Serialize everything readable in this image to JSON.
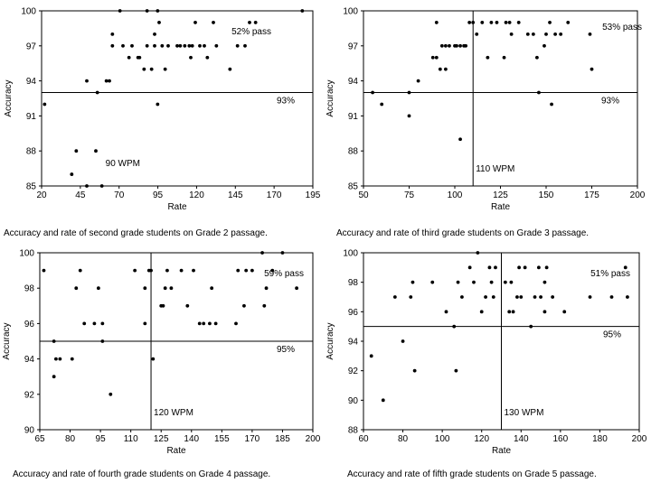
{
  "chart_data": [
    {
      "type": "scatter",
      "xlabel": "Rate",
      "ylabel": "Accuracy",
      "xlim": [
        20,
        200
      ],
      "ylim": [
        85,
        100
      ],
      "xticks": [
        "20",
        "45",
        "70",
        "95",
        "120",
        "145",
        "170",
        "195"
      ],
      "yticks": [
        "85",
        "88",
        "91",
        "94",
        "97",
        "100"
      ],
      "grid": false,
      "hline": {
        "value": 93,
        "label": "93%"
      },
      "vline": null,
      "rate_label": "90 WPM",
      "pass_label": "52% pass",
      "caption": "Accuracy and rate of second grade students on Grade 2 passage.",
      "points": [
        [
          22,
          92
        ],
        [
          40,
          86
        ],
        [
          43,
          88
        ],
        [
          50,
          85
        ],
        [
          50,
          94
        ],
        [
          56,
          88
        ],
        [
          57,
          93
        ],
        [
          60,
          85
        ],
        [
          63,
          94
        ],
        [
          65,
          94
        ],
        [
          67,
          97
        ],
        [
          67,
          98
        ],
        [
          72,
          100
        ],
        [
          74,
          97
        ],
        [
          78,
          96
        ],
        [
          80,
          97
        ],
        [
          84,
          96
        ],
        [
          85,
          96
        ],
        [
          88,
          95
        ],
        [
          90,
          97
        ],
        [
          90,
          100
        ],
        [
          93,
          95
        ],
        [
          95,
          97
        ],
        [
          95,
          98
        ],
        [
          97,
          92
        ],
        [
          97,
          100
        ],
        [
          98,
          99
        ],
        [
          100,
          97
        ],
        [
          102,
          95
        ],
        [
          104,
          97
        ],
        [
          110,
          97
        ],
        [
          112,
          97
        ],
        [
          115,
          97
        ],
        [
          118,
          97
        ],
        [
          119,
          96
        ],
        [
          120,
          97
        ],
        [
          122,
          99
        ],
        [
          125,
          97
        ],
        [
          128,
          97
        ],
        [
          130,
          96
        ],
        [
          134,
          99
        ],
        [
          136,
          97
        ],
        [
          145,
          95
        ],
        [
          150,
          97
        ],
        [
          155,
          97
        ],
        [
          158,
          99
        ],
        [
          162,
          99
        ],
        [
          193,
          100
        ]
      ]
    },
    {
      "type": "scatter",
      "xlabel": "Rate",
      "ylabel": "Accuracy",
      "xlim": [
        50,
        200
      ],
      "ylim": [
        85,
        100
      ],
      "xticks": [
        "50",
        "75",
        "100",
        "125",
        "150",
        "175",
        "200"
      ],
      "yticks": [
        "85",
        "88",
        "91",
        "94",
        "97",
        "100"
      ],
      "grid": false,
      "hline": {
        "value": 93,
        "label": "93%"
      },
      "vline": {
        "value": 110
      },
      "rate_label": "110 WPM",
      "pass_label": "53% pass",
      "caption": "Accuracy and rate of third grade students on Grade 3 passage.",
      "points": [
        [
          55,
          93
        ],
        [
          60,
          92
        ],
        [
          75,
          93
        ],
        [
          75,
          91
        ],
        [
          80,
          94
        ],
        [
          88,
          96
        ],
        [
          90,
          96
        ],
        [
          90,
          99
        ],
        [
          92,
          95
        ],
        [
          93,
          97
        ],
        [
          95,
          97
        ],
        [
          95,
          95
        ],
        [
          97,
          97
        ],
        [
          100,
          97
        ],
        [
          101,
          97
        ],
        [
          103,
          89
        ],
        [
          103,
          97
        ],
        [
          105,
          97
        ],
        [
          106,
          97
        ],
        [
          108,
          99
        ],
        [
          110,
          99
        ],
        [
          112,
          98
        ],
        [
          115,
          99
        ],
        [
          118,
          96
        ],
        [
          120,
          99
        ],
        [
          123,
          99
        ],
        [
          127,
          96
        ],
        [
          128,
          99
        ],
        [
          130,
          99
        ],
        [
          131,
          98
        ],
        [
          135,
          99
        ],
        [
          140,
          98
        ],
        [
          143,
          98
        ],
        [
          145,
          96
        ],
        [
          146,
          93
        ],
        [
          149,
          97
        ],
        [
          150,
          98
        ],
        [
          152,
          99
        ],
        [
          153,
          92
        ],
        [
          155,
          98
        ],
        [
          158,
          98
        ],
        [
          162,
          99
        ],
        [
          174,
          98
        ],
        [
          175,
          95
        ]
      ]
    },
    {
      "type": "scatter",
      "xlabel": "Rate",
      "ylabel": "Accuracy",
      "xlim": [
        65,
        200
      ],
      "ylim": [
        90,
        100
      ],
      "xticks": [
        "65",
        "80",
        "95",
        "110",
        "125",
        "140",
        "155",
        "170",
        "185",
        "200"
      ],
      "yticks": [
        "90",
        "92",
        "94",
        "96",
        "98",
        "100"
      ],
      "grid": false,
      "hline": {
        "value": 95,
        "label": "95%"
      },
      "vline": {
        "value": 120
      },
      "rate_label": "120 WPM",
      "pass_label": "59% pass",
      "caption": "Accuracy and rate of fourth grade students on Grade 4 passage.",
      "points": [
        [
          67,
          99
        ],
        [
          72,
          93
        ],
        [
          72,
          95
        ],
        [
          73,
          94
        ],
        [
          75,
          94
        ],
        [
          81,
          94
        ],
        [
          83,
          98
        ],
        [
          85,
          99
        ],
        [
          87,
          96
        ],
        [
          92,
          96
        ],
        [
          94,
          98
        ],
        [
          96,
          95
        ],
        [
          96,
          96
        ],
        [
          100,
          92
        ],
        [
          112,
          99
        ],
        [
          117,
          98
        ],
        [
          117,
          96
        ],
        [
          119,
          99
        ],
        [
          120,
          99
        ],
        [
          121,
          94
        ],
        [
          125,
          97
        ],
        [
          126,
          97
        ],
        [
          127,
          98
        ],
        [
          128,
          99
        ],
        [
          130,
          98
        ],
        [
          135,
          99
        ],
        [
          138,
          97
        ],
        [
          141,
          99
        ],
        [
          144,
          96
        ],
        [
          146,
          96
        ],
        [
          149,
          96
        ],
        [
          150,
          98
        ],
        [
          152,
          96
        ],
        [
          162,
          96
        ],
        [
          163,
          99
        ],
        [
          166,
          97
        ],
        [
          167,
          99
        ],
        [
          170,
          99
        ],
        [
          175,
          100
        ],
        [
          176,
          97
        ],
        [
          177,
          98
        ],
        [
          180,
          99
        ],
        [
          185,
          100
        ],
        [
          192,
          98
        ]
      ]
    },
    {
      "type": "scatter",
      "xlabel": "Rate",
      "ylabel": "Accuracy",
      "xlim": [
        60,
        200
      ],
      "ylim": [
        88,
        100
      ],
      "xticks": [
        "60",
        "80",
        "100",
        "120",
        "140",
        "160",
        "180",
        "200"
      ],
      "yticks": [
        "88",
        "90",
        "92",
        "94",
        "96",
        "98",
        "100"
      ],
      "grid": false,
      "hline": {
        "value": 95,
        "label": "95%"
      },
      "vline": {
        "value": 130
      },
      "rate_label": "130 WPM",
      "pass_label": "51% pass",
      "caption": "Accuracy and rate of fifth grade students on Grade 5 passage.",
      "points": [
        [
          64,
          93
        ],
        [
          70,
          90
        ],
        [
          76,
          97
        ],
        [
          80,
          94
        ],
        [
          84,
          97
        ],
        [
          85,
          98
        ],
        [
          86,
          92
        ],
        [
          95,
          98
        ],
        [
          102,
          96
        ],
        [
          106,
          95
        ],
        [
          107,
          92
        ],
        [
          108,
          98
        ],
        [
          110,
          97
        ],
        [
          114,
          99
        ],
        [
          116,
          98
        ],
        [
          118,
          100
        ],
        [
          120,
          96
        ],
        [
          122,
          97
        ],
        [
          124,
          99
        ],
        [
          125,
          98
        ],
        [
          126,
          97
        ],
        [
          127,
          99
        ],
        [
          132,
          98
        ],
        [
          134,
          96
        ],
        [
          135,
          98
        ],
        [
          136,
          96
        ],
        [
          138,
          97
        ],
        [
          139,
          99
        ],
        [
          140,
          97
        ],
        [
          142,
          99
        ],
        [
          145,
          95
        ],
        [
          147,
          97
        ],
        [
          149,
          99
        ],
        [
          150,
          97
        ],
        [
          152,
          96
        ],
        [
          152,
          98
        ],
        [
          153,
          99
        ],
        [
          156,
          97
        ],
        [
          162,
          96
        ],
        [
          175,
          97
        ],
        [
          186,
          97
        ],
        [
          193,
          99
        ],
        [
          194,
          97
        ]
      ]
    }
  ]
}
